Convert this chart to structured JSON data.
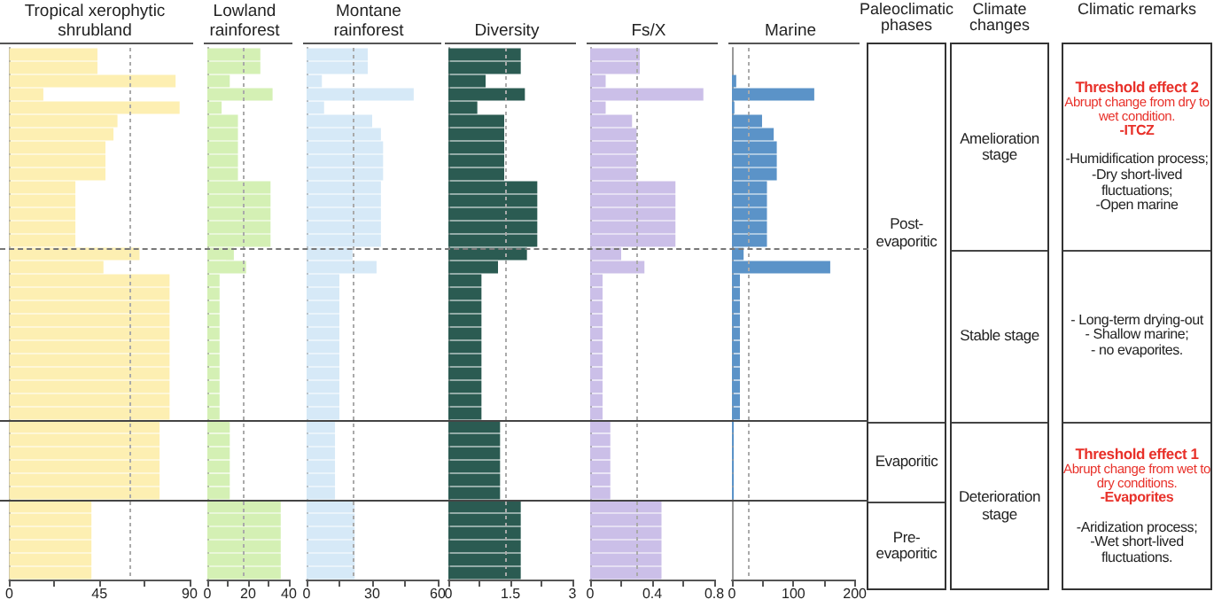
{
  "chart_data": [
    {
      "type": "bar",
      "orientation": "horizontal",
      "title": "Tropical xerophytic shrubland",
      "categories": [
        null,
        null,
        null,
        null,
        null,
        null,
        null,
        null,
        null,
        null,
        null,
        null,
        null,
        null,
        null,
        null,
        null,
        null,
        null,
        null,
        null,
        null,
        null,
        null,
        null,
        null,
        null,
        null,
        null,
        null,
        null,
        null,
        null,
        null,
        null,
        null,
        null,
        null,
        null,
        null
      ],
      "series": [
        {
          "color": "#fdefb2",
          "values": [
            44,
            44,
            83,
            17,
            85,
            54,
            52,
            48,
            48,
            48,
            33,
            33,
            33,
            33,
            33,
            65,
            47,
            80,
            80,
            80,
            80,
            80,
            80,
            80,
            80,
            80,
            80,
            80,
            75,
            75,
            75,
            75,
            75,
            75,
            41,
            41,
            41,
            41,
            41,
            41
          ]
        }
      ],
      "xlim": [
        0,
        90
      ],
      "xticks": [
        0,
        {
          "value": 22.5,
          "label": null
        },
        45,
        {
          "value": 67.5,
          "label": null
        },
        90
      ],
      "tick_labels": "x",
      "ref_lines": [
        {
          "axis": "x",
          "value": 60,
          "line_style": "dotted"
        }
      ]
    },
    {
      "type": "bar",
      "orientation": "horizontal",
      "title": "Lowland rainforest",
      "categories": [
        null,
        null,
        null,
        null,
        null,
        null,
        null,
        null,
        null,
        null,
        null,
        null,
        null,
        null,
        null,
        null,
        null,
        null,
        null,
        null,
        null,
        null,
        null,
        null,
        null,
        null,
        null,
        null,
        null,
        null,
        null,
        null,
        null,
        null,
        null,
        null,
        null,
        null,
        null,
        null
      ],
      "series": [
        {
          "color": "#d4f0b4",
          "values": [
            26,
            26,
            11,
            32,
            7,
            15,
            15,
            15,
            15,
            15,
            31,
            31,
            31,
            31,
            31,
            13,
            19,
            6,
            6,
            6,
            6,
            6,
            6,
            6,
            6,
            6,
            6,
            6,
            11,
            11,
            11,
            11,
            11,
            11,
            36,
            36,
            36,
            36,
            36,
            36
          ]
        }
      ],
      "xlim": [
        0,
        40
      ],
      "xticks": [
        0,
        {
          "value": 10,
          "label": null
        },
        20,
        {
          "value": 30,
          "label": null
        },
        40
      ],
      "tick_labels": "x",
      "ref_lines": [
        {
          "axis": "x",
          "value": 18,
          "line_style": "dotted"
        }
      ]
    },
    {
      "type": "bar",
      "orientation": "horizontal",
      "title": "Montane rainforest",
      "categories": [
        null,
        null,
        null,
        null,
        null,
        null,
        null,
        null,
        null,
        null,
        null,
        null,
        null,
        null,
        null,
        null,
        null,
        null,
        null,
        null,
        null,
        null,
        null,
        null,
        null,
        null,
        null,
        null,
        null,
        null,
        null,
        null,
        null,
        null,
        null,
        null,
        null,
        null,
        null,
        null
      ],
      "series": [
        {
          "color": "#d6e9f7",
          "values": [
            28,
            28,
            7,
            49,
            8,
            30,
            34,
            35,
            35,
            35,
            34,
            34,
            34,
            34,
            34,
            21,
            32,
            15,
            15,
            15,
            15,
            15,
            15,
            15,
            15,
            15,
            15,
            15,
            13,
            13,
            13,
            13,
            13,
            13,
            22,
            22,
            22,
            22,
            22,
            22
          ]
        }
      ],
      "xlim": [
        0,
        60
      ],
      "xticks": [
        0,
        {
          "value": 15,
          "label": null
        },
        30,
        {
          "value": 45,
          "label": null
        },
        60
      ],
      "tick_labels": "x",
      "ref_lines": [
        {
          "axis": "x",
          "value": 21,
          "line_style": "dotted"
        }
      ]
    },
    {
      "type": "bar",
      "orientation": "horizontal",
      "title": "Diversity",
      "categories": [
        null,
        null,
        null,
        null,
        null,
        null,
        null,
        null,
        null,
        null,
        null,
        null,
        null,
        null,
        null,
        null,
        null,
        null,
        null,
        null,
        null,
        null,
        null,
        null,
        null,
        null,
        null,
        null,
        null,
        null,
        null,
        null,
        null,
        null,
        null,
        null,
        null,
        null,
        null,
        null
      ],
      "series": [
        {
          "color": "#2b5b52",
          "values": [
            1.75,
            1.75,
            0.9,
            1.85,
            0.7,
            1.35,
            1.35,
            1.35,
            1.35,
            1.35,
            2.15,
            2.15,
            2.15,
            2.15,
            2.15,
            1.9,
            1.2,
            0.8,
            0.8,
            0.8,
            0.8,
            0.8,
            0.8,
            0.8,
            0.8,
            0.8,
            0.8,
            0.8,
            1.25,
            1.25,
            1.25,
            1.25,
            1.25,
            1.25,
            1.75,
            1.75,
            1.75,
            1.75,
            1.75,
            1.75
          ]
        }
      ],
      "xlim": [
        0,
        3
      ],
      "xticks": [
        0,
        {
          "value": 0.75,
          "label": null
        },
        1.5,
        {
          "value": 2.25,
          "label": null
        },
        3
      ],
      "tick_labels": "x",
      "ref_lines": [
        {
          "axis": "x",
          "value": 1.4,
          "line_style": "dotted"
        }
      ]
    },
    {
      "type": "bar",
      "orientation": "horizontal",
      "title": "Fs/X",
      "categories": [
        null,
        null,
        null,
        null,
        null,
        null,
        null,
        null,
        null,
        null,
        null,
        null,
        null,
        null,
        null,
        null,
        null,
        null,
        null,
        null,
        null,
        null,
        null,
        null,
        null,
        null,
        null,
        null,
        null,
        null,
        null,
        null,
        null,
        null,
        null,
        null,
        null,
        null,
        null,
        null
      ],
      "series": [
        {
          "color": "#cbbfe8",
          "values": [
            0.32,
            0.32,
            0.1,
            0.73,
            0.1,
            0.27,
            0.3,
            0.3,
            0.3,
            0.3,
            0.55,
            0.55,
            0.55,
            0.55,
            0.55,
            0.2,
            0.35,
            0.08,
            0.08,
            0.08,
            0.08,
            0.08,
            0.08,
            0.08,
            0.08,
            0.08,
            0.08,
            0.08,
            0.13,
            0.13,
            0.13,
            0.13,
            0.13,
            0.13,
            0.46,
            0.46,
            0.46,
            0.46,
            0.46,
            0.46
          ]
        }
      ],
      "xlim": [
        0,
        0.8
      ],
      "xticks": [
        0,
        {
          "value": 0.2,
          "label": null
        },
        0.4,
        {
          "value": 0.6,
          "label": null
        },
        0.8
      ],
      "tick_labels": "x",
      "ref_lines": [
        {
          "axis": "x",
          "value": 0.3,
          "line_style": "dotted"
        }
      ]
    },
    {
      "type": "bar",
      "orientation": "horizontal",
      "title": "Marine",
      "categories": [
        null,
        null,
        null,
        null,
        null,
        null,
        null,
        null,
        null,
        null,
        null,
        null,
        null,
        null,
        null,
        null,
        null,
        null,
        null,
        null,
        null,
        null,
        null,
        null,
        null,
        null,
        null,
        null,
        null,
        null,
        null,
        null,
        null,
        null,
        null,
        null,
        null,
        null,
        null,
        null
      ],
      "series": [
        {
          "color": "#5b93c8",
          "values": [
            0,
            0,
            7,
            134,
            4,
            49,
            68,
            73,
            73,
            73,
            57,
            57,
            57,
            57,
            57,
            19,
            160,
            13,
            13,
            13,
            13,
            13,
            13,
            13,
            13,
            13,
            13,
            13,
            3,
            3,
            3,
            3,
            3,
            3,
            0,
            0,
            0,
            0,
            0,
            0
          ]
        }
      ],
      "xlim": [
        0,
        200
      ],
      "xticks": [
        0,
        {
          "value": 50,
          "label": null
        },
        100,
        {
          "value": 150,
          "label": null
        },
        200
      ],
      "tick_labels": "x",
      "ref_lines": [
        {
          "axis": "x",
          "value": 26,
          "line_style": "dotted"
        }
      ]
    },
    {
      "type": "other",
      "title": "Paleoclimatic phases",
      "annotations": [
        "Post-evaporitic",
        "Evaporitic",
        "Pre-evaporitic"
      ]
    },
    {
      "type": "other",
      "title": "Climate changes",
      "annotations": [
        "Amelioration stage",
        "Stable stage",
        "Deterioration stage"
      ]
    },
    {
      "type": "other",
      "title": "Climatic remarks",
      "annotations": [
        "Threshold effect 2",
        "Abrupt change from dry to wet condition.",
        "-ITCZ",
        "-Humidification process;",
        "-Dry short-lived fluctuations;",
        "-Open marine",
        "- Long-term drying-out",
        "- Shallow marine;",
        "- no evaporites.",
        "Threshold effect 1",
        "Abrupt change from wet to dry conditions.",
        "-Evaporites",
        "-Aridization process;",
        "-Wet short-lived fluctuations."
      ]
    }
  ]
}
